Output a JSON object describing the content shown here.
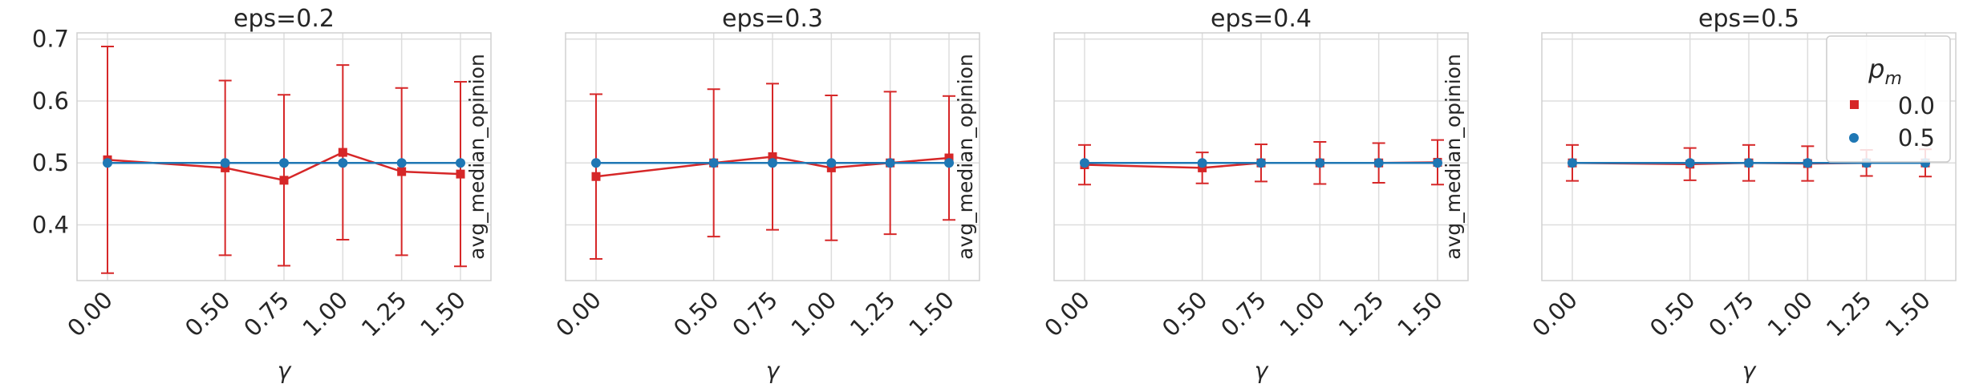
{
  "colors": {
    "series_0": "#d62728",
    "series_0_5": "#1f77b4",
    "grid": "#dddddd",
    "frame": "#d0d0d0",
    "text": "#262626"
  },
  "legend": {
    "title": "p",
    "title_sub": "m",
    "placement": "top-right",
    "entries": [
      "0.0",
      "0.5"
    ]
  },
  "chart_data": [
    {
      "type": "line",
      "title": "eps=0.2",
      "xlabel": "γ",
      "ylabel": "avg_median_opinion",
      "x": [
        0.0,
        0.5,
        0.75,
        1.0,
        1.25,
        1.5
      ],
      "xticks": [
        "0.00",
        "0.50",
        "0.75",
        "1.00",
        "1.25",
        "1.50"
      ],
      "ylim": [
        0.31,
        0.71
      ],
      "yticks": [
        "0.4",
        "0.5",
        "0.6",
        "0.7"
      ],
      "grid": true,
      "series": [
        {
          "legend": "0.0",
          "marker": "square",
          "values": [
            0.505,
            0.492,
            0.472,
            0.517,
            0.486,
            0.482
          ],
          "err": [
            0.183,
            0.141,
            0.138,
            0.141,
            0.135,
            0.149
          ]
        },
        {
          "legend": "0.5",
          "marker": "circle",
          "values": [
            0.5,
            0.5,
            0.5,
            0.5,
            0.5,
            0.5
          ]
        }
      ]
    },
    {
      "type": "line",
      "title": "eps=0.3",
      "xlabel": "γ",
      "ylabel": "avg_median_opinion",
      "x": [
        0.0,
        0.5,
        0.75,
        1.0,
        1.25,
        1.5
      ],
      "xticks": [
        "0.00",
        "0.50",
        "0.75",
        "1.00",
        "1.25",
        "1.50"
      ],
      "ylim": [
        0.31,
        0.71
      ],
      "yticks": [],
      "grid": true,
      "series": [
        {
          "legend": "0.0",
          "marker": "square",
          "values": [
            0.478,
            0.5,
            0.51,
            0.492,
            0.5,
            0.508
          ],
          "err": [
            0.133,
            0.119,
            0.118,
            0.117,
            0.115,
            0.1
          ]
        },
        {
          "legend": "0.5",
          "marker": "circle",
          "values": [
            0.5,
            0.5,
            0.5,
            0.5,
            0.5,
            0.5
          ]
        }
      ]
    },
    {
      "type": "line",
      "title": "eps=0.4",
      "xlabel": "γ",
      "ylabel": "avg_median_opinion",
      "x": [
        0.0,
        0.5,
        0.75,
        1.0,
        1.25,
        1.5
      ],
      "xticks": [
        "0.00",
        "0.50",
        "0.75",
        "1.00",
        "1.25",
        "1.50"
      ],
      "ylim": [
        0.31,
        0.71
      ],
      "yticks": [],
      "grid": true,
      "series": [
        {
          "legend": "0.0",
          "marker": "square",
          "values": [
            0.497,
            0.492,
            0.5,
            0.5,
            0.5,
            0.501
          ],
          "err": [
            0.032,
            0.025,
            0.03,
            0.034,
            0.032,
            0.036
          ]
        },
        {
          "legend": "0.5",
          "marker": "circle",
          "values": [
            0.5,
            0.5,
            0.5,
            0.5,
            0.5,
            0.5
          ]
        }
      ]
    },
    {
      "type": "line",
      "title": "eps=0.5",
      "xlabel": "γ",
      "ylabel": "avg_median_opinion",
      "x": [
        0.0,
        0.5,
        0.75,
        1.0,
        1.25,
        1.5
      ],
      "xticks": [
        "0.00",
        "0.50",
        "0.75",
        "1.00",
        "1.25",
        "1.50"
      ],
      "ylim": [
        0.31,
        0.71
      ],
      "yticks": [],
      "grid": true,
      "series": [
        {
          "legend": "0.0",
          "marker": "square",
          "values": [
            0.5,
            0.498,
            0.5,
            0.499,
            0.5,
            0.5
          ],
          "err": [
            0.029,
            0.026,
            0.029,
            0.028,
            0.021,
            0.022
          ]
        },
        {
          "legend": "0.5",
          "marker": "circle",
          "values": [
            0.5,
            0.5,
            0.5,
            0.5,
            0.5,
            0.5
          ]
        }
      ]
    }
  ]
}
